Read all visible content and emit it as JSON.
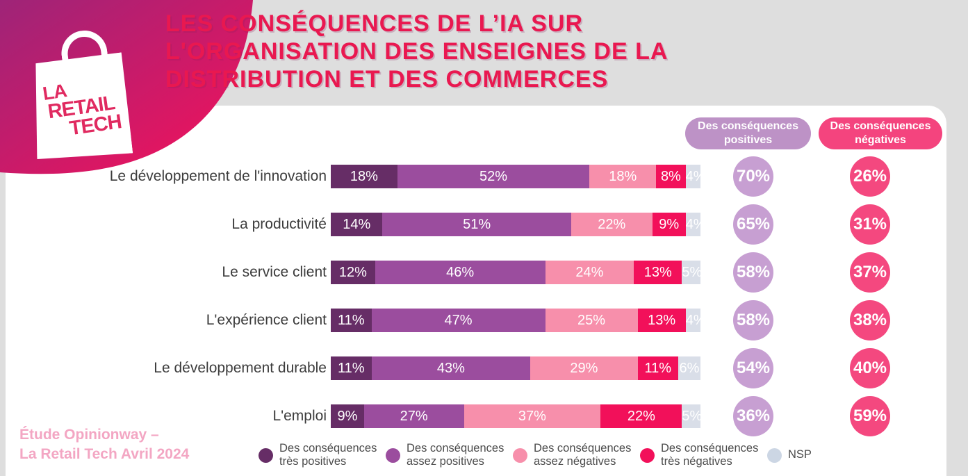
{
  "logo": {
    "line1": "LA",
    "line2": "RETAIL",
    "line3": "TECH"
  },
  "header": {
    "title": "LES CONSÉQUENCES DE L’IA SUR L'ORGANISATION DES ENSEIGNES DE LA DISTRIBUTION ET DES COMMERCES",
    "title_color": "#e91850"
  },
  "summary_badges": {
    "positive": {
      "label": "Des conséquences positives",
      "color": "#bd92c6"
    },
    "negative": {
      "label": "Des conséquences négatives",
      "color": "#f4447e"
    }
  },
  "chart_data": {
    "type": "bar",
    "subtype": "horizontal-stacked-100pct",
    "categories": [
      "Le développement de l'innovation",
      "La productivité",
      "Le service client",
      "L'expérience client",
      "Le développement durable",
      "L'emploi"
    ],
    "series": [
      {
        "name": "Des conséquences très positives",
        "color": "#662d66",
        "values": [
          18,
          14,
          12,
          11,
          11,
          9
        ]
      },
      {
        "name": "Des conséquences assez positives",
        "color": "#9b4d9e",
        "values": [
          52,
          51,
          46,
          47,
          43,
          27
        ]
      },
      {
        "name": "Des conséquences assez négatives",
        "color": "#f78fab",
        "values": [
          18,
          22,
          24,
          25,
          29,
          37
        ]
      },
      {
        "name": "Des conséquences très négatives",
        "color": "#f2105a",
        "values": [
          8,
          9,
          13,
          13,
          11,
          22
        ]
      },
      {
        "name": "NSP",
        "color": "#d9dee8",
        "values": [
          4,
          4,
          5,
          4,
          6,
          5
        ]
      }
    ],
    "totals": {
      "positive": {
        "label": "Des conséquences positives",
        "color": "#c79fd2",
        "values": [
          "70%",
          "65%",
          "58%",
          "58%",
          "54%",
          "36%"
        ]
      },
      "negative": {
        "label": "Des conséquences négatives",
        "color": "#f4487f",
        "values": [
          "26%",
          "31%",
          "37%",
          "38%",
          "40%",
          "59%"
        ]
      }
    },
    "value_suffix": "%",
    "xlim": [
      0,
      100
    ],
    "grid": false,
    "legend_position": "bottom"
  },
  "legend": {
    "items": [
      {
        "line1": "Des conséquences",
        "line2": "très positives",
        "color": "#662d66"
      },
      {
        "line1": "Des conséquences",
        "line2": "assez positives",
        "color": "#9b4d9e"
      },
      {
        "line1": "Des conséquences",
        "line2": "assez négatives",
        "color": "#f78fab"
      },
      {
        "line1": "Des conséquences",
        "line2": "très négatives",
        "color": "#f2105a"
      },
      {
        "line1": "NSP",
        "line2": "",
        "color": "#ccd6e4"
      }
    ]
  },
  "footer": {
    "source_line1": "Étude Opinionway –",
    "source_line2": "La Retail Tech Avril 2024"
  }
}
